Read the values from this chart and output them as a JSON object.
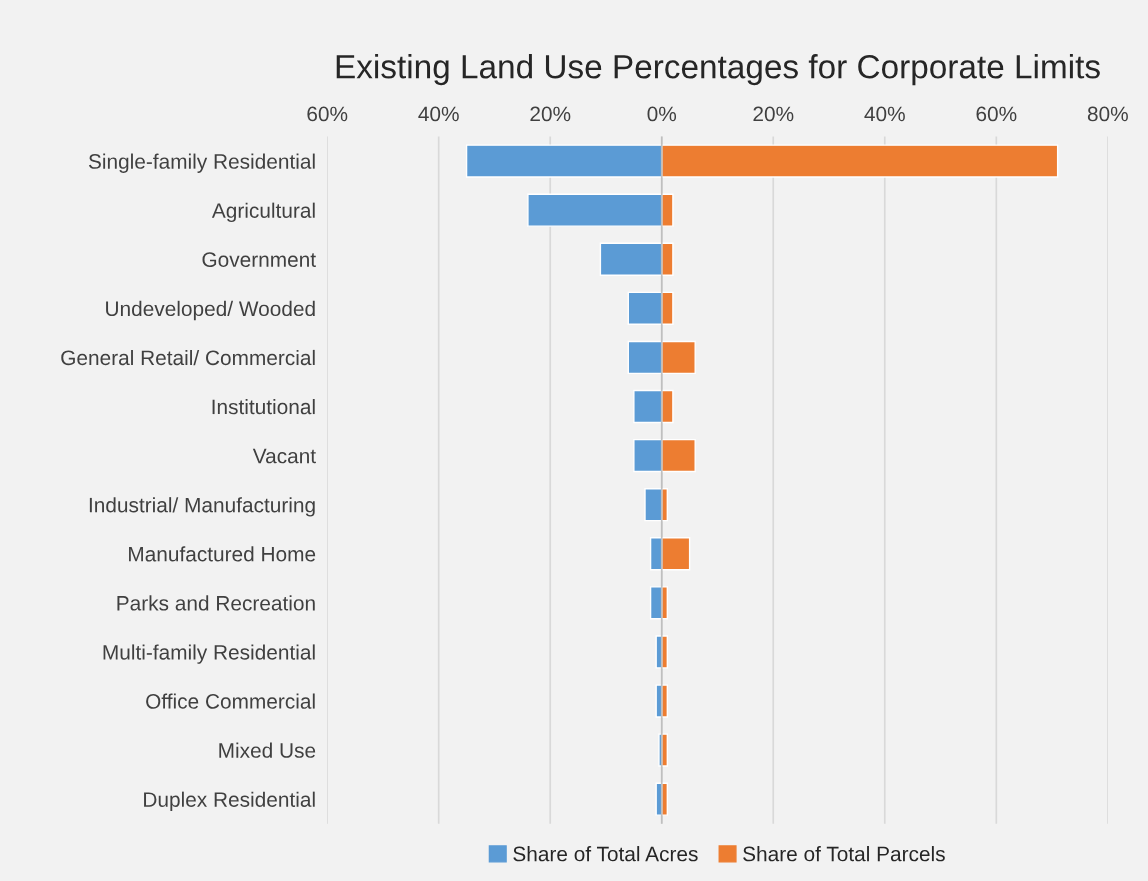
{
  "chart_data": {
    "type": "bar",
    "orientation": "horizontal",
    "stacked": true,
    "title": "Existing Land Use Percentages for Corporate Limits",
    "categories": [
      "Single-family Residential",
      "Agricultural",
      "Government",
      "Undeveloped/ Wooded",
      "General Retail/ Commercial",
      "Institutional",
      "Vacant",
      "Industrial/ Manufacturing",
      "Manufactured Home",
      "Parks and Recreation",
      "Multi-family Residential",
      "Office Commercial",
      "Mixed Use",
      "Duplex Residential"
    ],
    "series": [
      {
        "name": "Share of Total Acres",
        "color": "#5b9bd5",
        "values": [
          -35,
          -24,
          -11,
          -6,
          -6,
          -5,
          -5,
          -3,
          -2,
          -2,
          -1,
          -1,
          -0.5,
          -1
        ]
      },
      {
        "name": "Share of Total Parcels",
        "color": "#ed7d31",
        "values": [
          71,
          2,
          2,
          2,
          6,
          2,
          6,
          1,
          5,
          1,
          1,
          1,
          1,
          1
        ]
      }
    ],
    "xlim": [
      -60,
      80
    ],
    "xticks": [
      {
        "value": -60,
        "label": "60%"
      },
      {
        "value": -40,
        "label": "40%"
      },
      {
        "value": -20,
        "label": "20%"
      },
      {
        "value": 0,
        "label": "0%"
      },
      {
        "value": 20,
        "label": "20%"
      },
      {
        "value": 40,
        "label": "40%"
      },
      {
        "value": 60,
        "label": "60%"
      },
      {
        "value": 80,
        "label": "80%"
      }
    ],
    "grid": "x",
    "legend": "bottom"
  }
}
